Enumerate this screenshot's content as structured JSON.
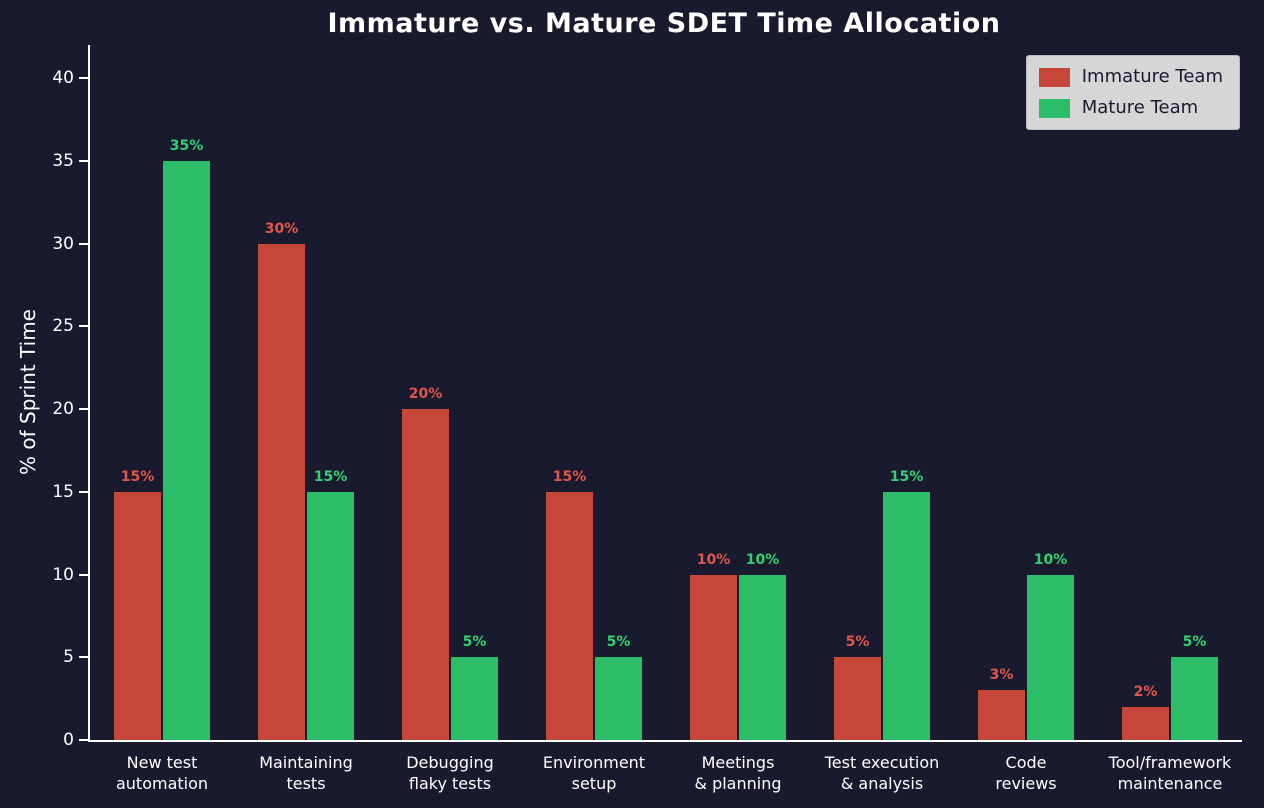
{
  "chart_data": {
    "type": "bar",
    "title": "Immature vs. Mature SDET Time Allocation",
    "xlabel": "",
    "ylabel": "% of Sprint Time",
    "categories": [
      "New test\nautomation",
      "Maintaining\ntests",
      "Debugging\nflaky tests",
      "Environment\nsetup",
      "Meetings\n& planning",
      "Test execution\n& analysis",
      "Code\nreviews",
      "Tool/framework\nmaintenance"
    ],
    "series": [
      {
        "name": "Immature Team",
        "values": [
          15,
          30,
          20,
          15,
          10,
          5,
          3,
          2
        ],
        "color": "#c7463a",
        "label_color": "#e2564a"
      },
      {
        "name": "Mature Team",
        "values": [
          35,
          15,
          5,
          5,
          10,
          15,
          10,
          5
        ],
        "color": "#2bbd68",
        "label_color": "#31d173"
      }
    ],
    "value_suffix": "%",
    "ylim": [
      0,
      42
    ],
    "yticks": [
      0,
      5,
      10,
      15,
      20,
      25,
      30,
      35,
      40
    ],
    "grid": false,
    "legend_position": "upper right",
    "colors": {
      "background": "#1a1a2e",
      "axis": "#ffffff",
      "text": "#ffffff",
      "legend_background": "#d6d6d6",
      "legend_border": "#b9b9b9",
      "legend_text": "#1a1a2e"
    }
  }
}
